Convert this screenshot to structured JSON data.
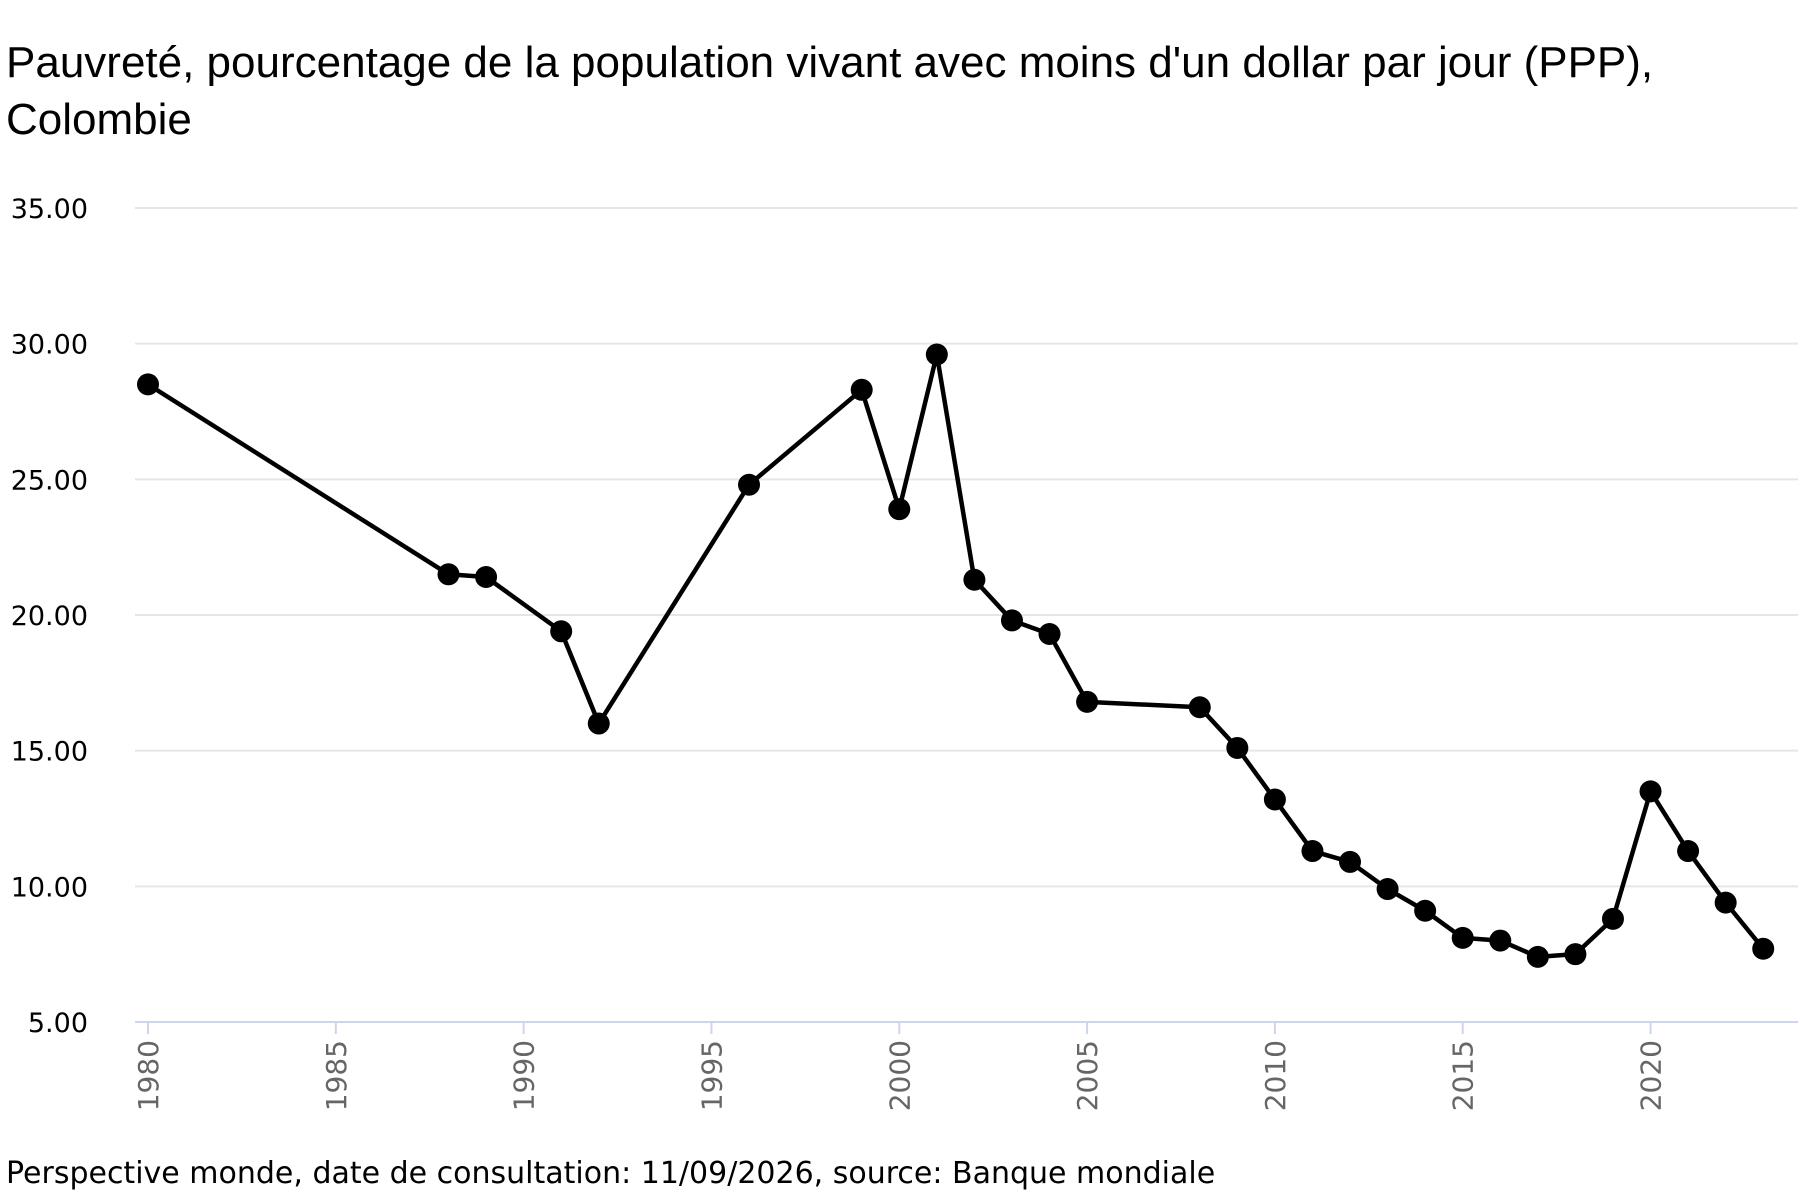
{
  "chart_data": {
    "type": "line",
    "title": "Pauvreté, pourcentage de la population vivant avec moins d'un dollar par jour (PPP), Colombie",
    "xlabel": "",
    "ylabel": "",
    "x": [
      1980,
      1988,
      1989,
      1991,
      1992,
      1996,
      1999,
      2000,
      2001,
      2002,
      2003,
      2004,
      2005,
      2008,
      2009,
      2010,
      2011,
      2012,
      2013,
      2014,
      2015,
      2016,
      2017,
      2018,
      2019,
      2020,
      2021,
      2022,
      2023
    ],
    "series": [
      {
        "values": [
          28.5,
          21.5,
          21.4,
          19.4,
          16.0,
          24.8,
          28.3,
          23.9,
          29.6,
          21.3,
          19.8,
          19.3,
          16.8,
          16.6,
          15.1,
          13.2,
          11.3,
          10.9,
          9.9,
          9.1,
          8.1,
          8.0,
          7.4,
          7.5,
          8.8,
          13.5,
          11.3,
          9.4,
          7.7
        ]
      }
    ],
    "ylim": [
      5,
      35
    ],
    "xlim": [
      1980,
      2023.5
    ],
    "y_ticks": [
      "5.00",
      "10.00",
      "15.00",
      "20.00",
      "25.00",
      "30.00",
      "35.00"
    ],
    "x_ticks": [
      "1980",
      "1985",
      "1990",
      "1995",
      "2000",
      "2005",
      "2010",
      "2015",
      "2020"
    ],
    "grid": true,
    "legend": "none",
    "colors": {
      "line": "#000000",
      "grid": "#e6e6e6",
      "axis": "#ccd6eb",
      "tick_label_x": "#666666",
      "tick_label_y": "#000000"
    }
  },
  "footer": {
    "source": "Perspective monde, date de consultation: 11/09/2026, source: Banque mondiale"
  }
}
